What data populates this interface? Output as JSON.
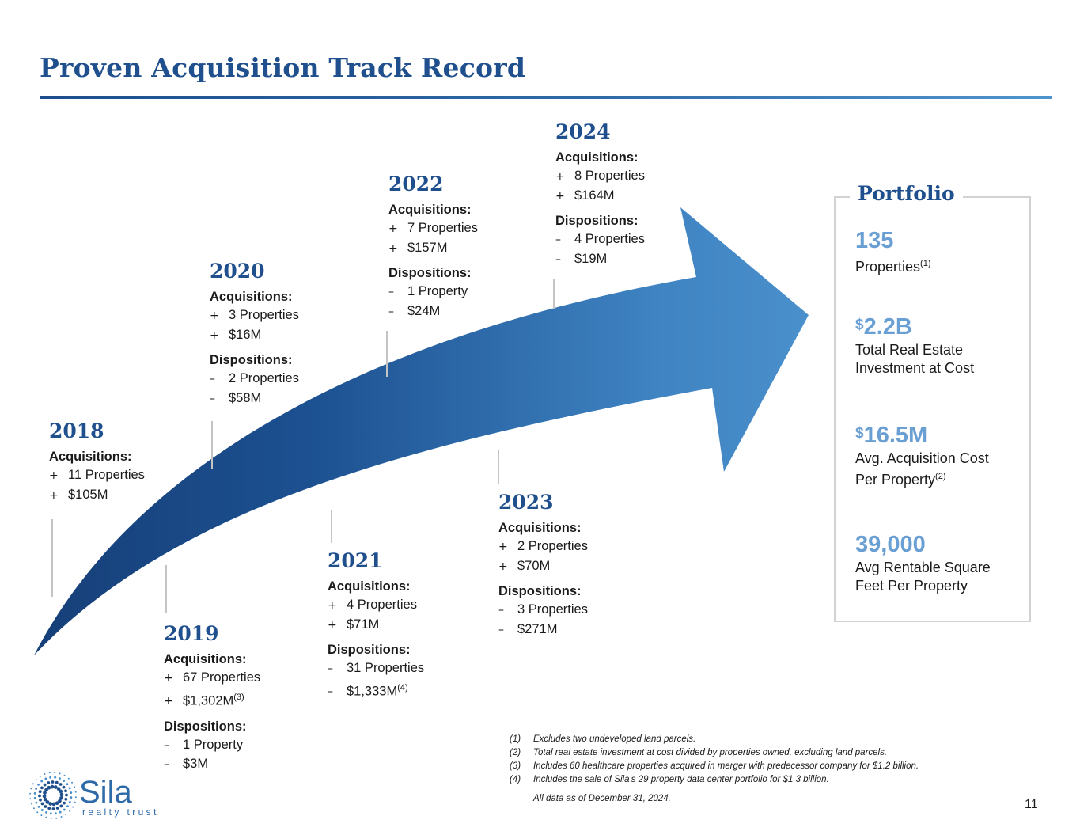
{
  "title": "Proven Acquisition Track Record",
  "labels": {
    "acq": "Acquisitions:",
    "disp": "Dispositions:",
    "plus": "+",
    "minus": "–"
  },
  "years": [
    {
      "year": "2018",
      "acq": [
        "11 Properties",
        "$105M"
      ],
      "disp": []
    },
    {
      "year": "2019",
      "acq": [
        "67 Properties",
        "$1,302M"
      ],
      "acq_sup": "(3)",
      "disp": [
        "1 Property",
        "$3M"
      ]
    },
    {
      "year": "2020",
      "acq": [
        "3 Properties",
        "$16M"
      ],
      "disp": [
        "2 Properties",
        "$58M"
      ]
    },
    {
      "year": "2021",
      "acq": [
        "4 Properties",
        "$71M"
      ],
      "disp": [
        "31 Properties",
        "$1,333M"
      ],
      "disp_sup": "(4)"
    },
    {
      "year": "2022",
      "acq": [
        "7 Properties",
        "$157M"
      ],
      "disp": [
        "1 Property",
        "$24M"
      ]
    },
    {
      "year": "2023",
      "acq": [
        "2 Properties",
        "$70M"
      ],
      "disp": [
        "3 Properties",
        "$271M"
      ]
    },
    {
      "year": "2024",
      "acq": [
        "8 Properties",
        "$164M"
      ],
      "disp": [
        "4 Properties",
        "$19M"
      ]
    }
  ],
  "portfolio": {
    "title": "Portfolio",
    "stats": [
      {
        "value": "135",
        "desc1": "Properties",
        "sup": "(1)"
      },
      {
        "currency": "$",
        "value": "2.2B",
        "desc1": "Total Real Estate",
        "desc2": "Investment at Cost"
      },
      {
        "currency": "$",
        "value": "16.5M",
        "desc1": "Avg. Acquisition Cost",
        "desc2": "Per Property",
        "sup": "(2)"
      },
      {
        "value": "39,000",
        "desc1": "Avg Rentable Square",
        "desc2": "Feet Per Property"
      }
    ]
  },
  "footnotes": [
    {
      "num": "(1)",
      "text": "Excludes two undeveloped land parcels."
    },
    {
      "num": "(2)",
      "text": "Total real estate investment at cost divided by properties owned, excluding land parcels."
    },
    {
      "num": "(3)",
      "text": "Includes 60 healthcare properties acquired in merger with predecessor company for $1.2 billion."
    },
    {
      "num": "(4)",
      "text": "Includes the sale of Sila’s 29 property data center portfolio for $1.3 billion."
    }
  ],
  "as_of": "All data as of December 31, 2024.",
  "page_number": "11",
  "logo": {
    "name": "Sila",
    "tagline": "realty trust"
  },
  "colors": {
    "brand_navy": "#1f4f8c",
    "arrow_dark": "#163f78",
    "arrow_light": "#4a90cc",
    "stat_blue": "#6a9fd4"
  }
}
